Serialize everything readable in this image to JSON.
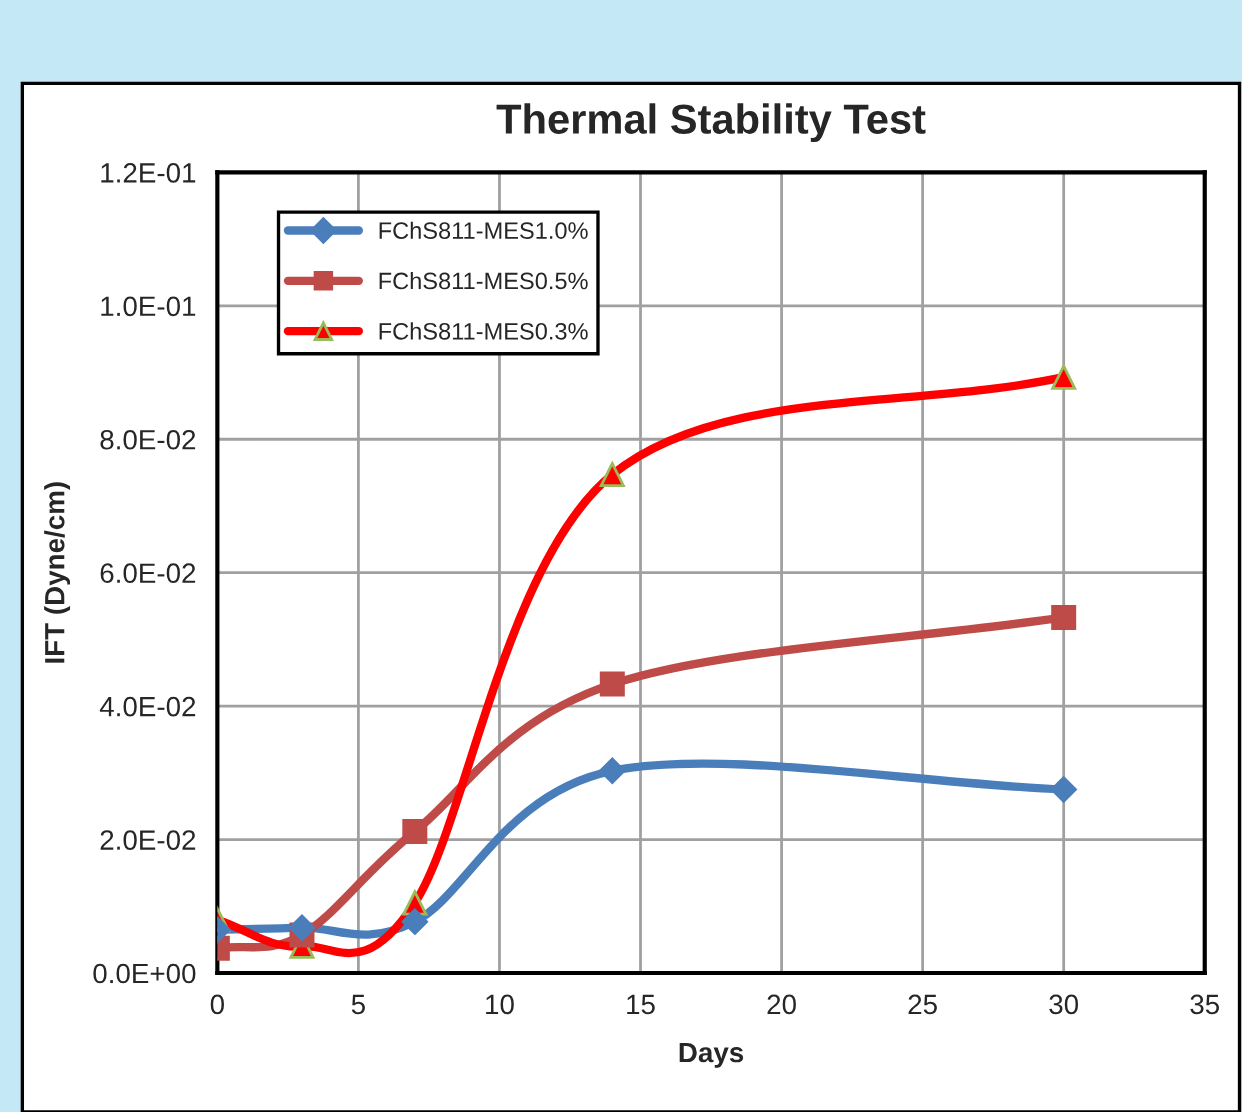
{
  "chart_data": {
    "type": "line",
    "title": "Thermal Stability Test",
    "xlabel": "Days",
    "ylabel": "IFT (Dyne/cm)",
    "x": [
      0,
      3,
      7,
      14,
      30
    ],
    "series": [
      {
        "name": "FChS811-MES1.0%",
        "color": "#4a7ebb",
        "marker": "diamond",
        "values": [
          0.0065,
          0.0068,
          0.0077,
          0.0303,
          0.0275
        ]
      },
      {
        "name": "FChS811-MES0.5%",
        "color": "#be4b48",
        "marker": "square",
        "values": [
          0.0037,
          0.0057,
          0.0212,
          0.0433,
          0.0533
        ]
      },
      {
        "name": "FChS811-MES0.3%",
        "color": "#ff0000",
        "marker": "triangle",
        "values": [
          0.008,
          0.004,
          0.0105,
          0.0747,
          0.0893
        ]
      }
    ],
    "xlim": [
      0,
      35
    ],
    "xticks": [
      0,
      5,
      10,
      15,
      20,
      25,
      30,
      35
    ],
    "ylim": [
      0,
      0.12
    ],
    "yticks": [
      {
        "value": 0,
        "label": "0.0E+00"
      },
      {
        "value": 0.02,
        "label": "2.0E-02"
      },
      {
        "value": 0.04,
        "label": "4.0E-02"
      },
      {
        "value": 0.06,
        "label": "6.0E-02"
      },
      {
        "value": 0.08,
        "label": "8.0E-02"
      },
      {
        "value": 0.1,
        "label": "1.0E-01"
      },
      {
        "value": 0.12,
        "label": "1.2E-01"
      }
    ],
    "grid": true,
    "legend": "top left",
    "line_style": "solid"
  }
}
